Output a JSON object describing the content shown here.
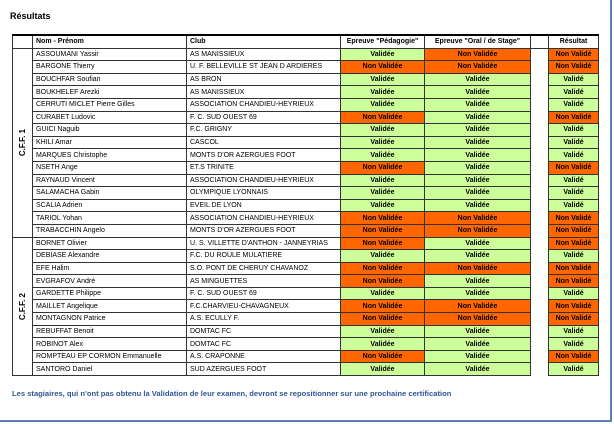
{
  "title": "Résultats",
  "table": {
    "header": [
      "Nom - Prénom",
      "Club",
      "Epreuve \"Pédagogie\"",
      "Epreuve \"Oral / de Stage\"",
      "Résultat"
    ],
    "groups": [
      {
        "label": "C.F.F. 1",
        "rows": [
          [
            "ASSOUMANI Yassir",
            "AS MANISSIEUX",
            "Validée",
            "Non Validée",
            "Non Validé"
          ],
          [
            "BARGONE Thierry",
            "U. F. BELLEVILLE ST JEAN D ARDIERES",
            "Non Validée",
            "Non Validée",
            "Non Validé"
          ],
          [
            "BOUCHFAR Soufian",
            "AS BRON",
            "Validée",
            "Validée",
            "Validé"
          ],
          [
            "BOUKHELEF Arezki",
            "AS MANISSIEUX",
            "Validée",
            "Validée",
            "Validé"
          ],
          [
            "CERRUTI MICLET Pierre Gilles",
            "ASSOCIATION CHANDIEU-HEYRIEUX",
            "Validée",
            "Validée",
            "Validé"
          ],
          [
            "CURABET Ludovic",
            "F. C. SUD OUEST 69",
            "Non Validée",
            "Validée",
            "Non Validé"
          ],
          [
            "GUICI Naguib",
            "F.C. GRIGNY",
            "Validée",
            "Validée",
            "Validé"
          ],
          [
            "KHILI Amar",
            "CASCOL",
            "Validée",
            "Validée",
            "Validé"
          ],
          [
            "MARQUES Christophe",
            "MONTS D'OR AZERGUES FOOT",
            "Validée",
            "Validée",
            "Validé"
          ],
          [
            "NSETH Ange",
            "ET.S TRINITE",
            "Non Validée",
            "Validée",
            "Non Validé"
          ],
          [
            "RAYNAUD Vincent",
            "ASSOCIATION CHANDIEU-HEYRIEUX",
            "Validée",
            "Validée",
            "Validé"
          ],
          [
            "SALAMACHA Gabin",
            "OLYMPIQUE LYONNAIS",
            "Validée",
            "Validée",
            "Validé"
          ],
          [
            "SCALIA Adrien",
            "EVEIL DE LYON",
            "Validée",
            "Validée",
            "Validé"
          ],
          [
            "TARIOL Yohan",
            "ASSOCIATION CHANDIEU-HEYRIEUX",
            "Non Validée",
            "Non Validée",
            "Non Validé"
          ],
          [
            "TRABACCHIN Angelo",
            "MONTS D'OR AZERGUES FOOT",
            "Non Validée",
            "Non Validée",
            "Non Validé"
          ]
        ]
      },
      {
        "label": "C.F.F. 2",
        "rows": [
          [
            "BORNET Olivier",
            "U. S. VILLETTE D'ANTHON - JANNEYRIAS",
            "Non Validée",
            "Validée",
            "Non Validé"
          ],
          [
            "DEBIASE Alexandre",
            "F.C. DU ROULE MULATIERE",
            "Validée",
            "Validée",
            "Validé"
          ],
          [
            "EFE Halim",
            "S.O. PONT DE CHERUY CHAVANOZ",
            "Non Validée",
            "Non Validée",
            "Non Validé"
          ],
          [
            "EVGRAFOV André",
            "AS MINGUETTES",
            "Non Validée",
            "Validée",
            "Non Validé"
          ],
          [
            "GARDETTE Philippe",
            "F. C. SUD OUEST 69",
            "Validée",
            "Validée",
            "Validé"
          ],
          [
            "MAILLET Angelique",
            "F.C.CHARVIEU-CHAVAGNEUX",
            "Non Validée",
            "Non Validée",
            "Non Validé"
          ],
          [
            "MONTAGNON Patrice",
            "A.S. ECULLY F.",
            "Non Validée",
            "Non Validée",
            "Non Validé"
          ],
          [
            "REBUFFAT Benoit",
            "DOMTAC FC",
            "Validée",
            "Validée",
            "Validé"
          ],
          [
            "ROBINOT Alex",
            "DOMTAC FC",
            "Validée",
            "Validée",
            "Validé"
          ],
          [
            "ROMPTEAU EP CORMON Emmanuelle",
            "A.S. CRAPONNE",
            "Non Validée",
            "Validée",
            "Non Validé"
          ],
          [
            "SANTORO Daniel",
            "SUD AZERGUES FOOT",
            "Validée",
            "Validée",
            "Validé"
          ]
        ]
      }
    ]
  },
  "note": "Les stagiaires, qui n'ont pas obtenu la Validation de leur examen, devront se repositionner sur une prochaine certification"
}
